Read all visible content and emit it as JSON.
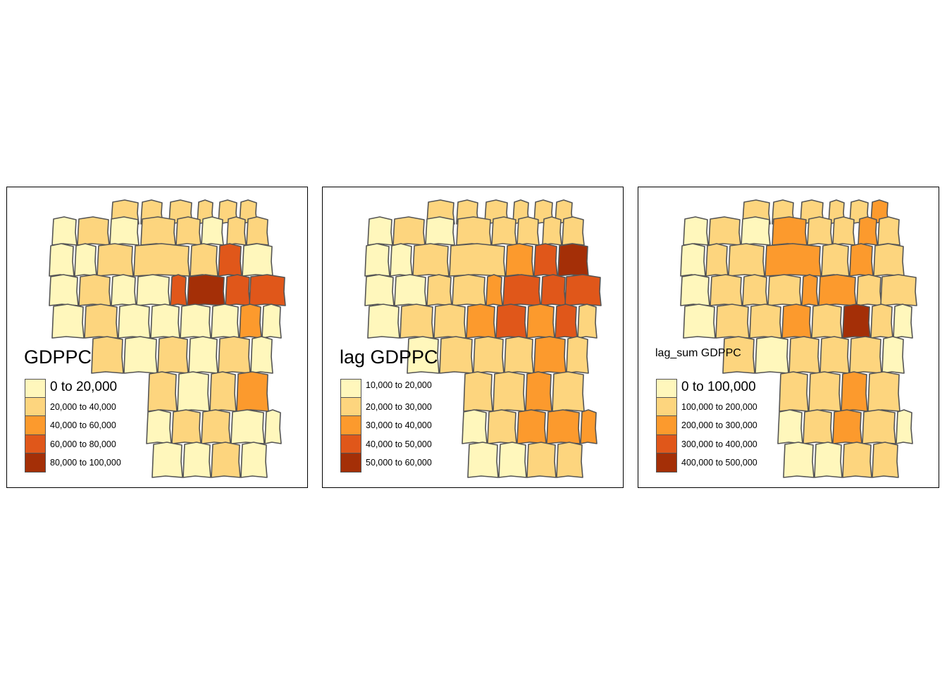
{
  "maps": [
    {
      "id": "gdppc",
      "legend_title": "GDPPC",
      "legend_title_size": 27,
      "first_label_size": 19,
      "classes": [
        "0 to 20,000",
        "20,000 to 40,000",
        "40,000 to 60,000",
        "60,000 to 80,000",
        "80,000 to 100,000"
      ]
    },
    {
      "id": "lag-gdppc",
      "legend_title": "lag GDPPC",
      "legend_title_size": 27,
      "first_label_size": 12.5,
      "classes": [
        "10,000 to 20,000",
        "20,000 to 30,000",
        "30,000 to 40,000",
        "40,000 to 50,000",
        "50,000 to 60,000"
      ]
    },
    {
      "id": "lag-sum-gdppc",
      "legend_title": "lag_sum GDPPC",
      "legend_title_size": 16,
      "first_label_size": 19,
      "classes": [
        "0 to 100,000",
        "100,000 to 200,000",
        "200,000 to 300,000",
        "300,000 to 400,000",
        "400,000 to 500,000"
      ]
    }
  ],
  "palette": [
    "#FFF7BC",
    "#FDD57E",
    "#FC9A2D",
    "#E0571A",
    "#A42F07"
  ],
  "border_color": "#555555"
}
